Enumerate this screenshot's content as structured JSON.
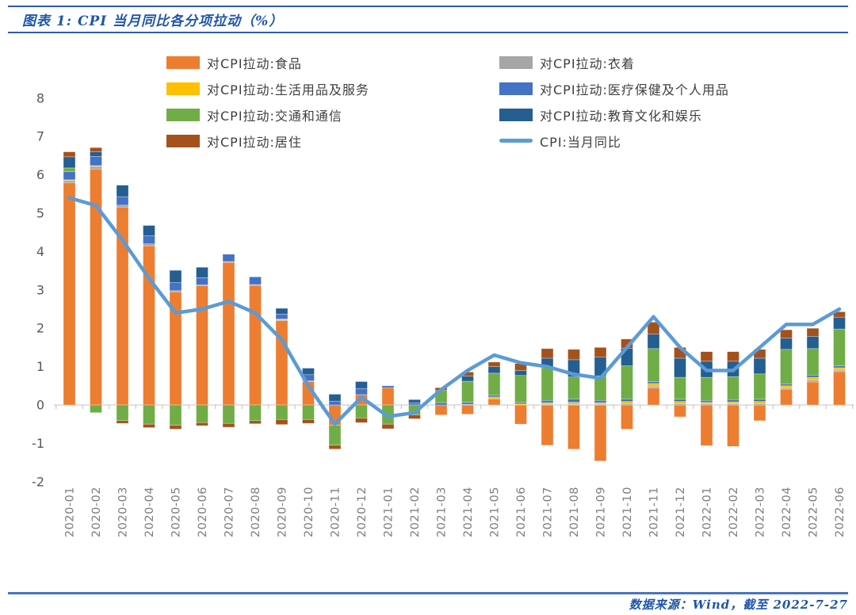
{
  "title": {
    "text": "图表 1: CPI 当月同比各分项拉动（%）"
  },
  "footer": {
    "source": "数据来源：Wind，截至 2022-7-27"
  },
  "chart_data": {
    "type": "bar",
    "subtype": "stacked-bar-with-line",
    "title": "图表 1: CPI 当月同比各分项拉动（%）",
    "xlabel": "",
    "ylabel": "",
    "ylim": [
      -2,
      8
    ],
    "yticks": [
      8,
      7,
      6,
      5,
      4,
      3,
      2,
      1,
      0,
      -1,
      -2
    ],
    "grid": false,
    "legend_position": "top",
    "categories": [
      "2020-01",
      "2020-02",
      "2020-03",
      "2020-04",
      "2020-05",
      "2020-06",
      "2020-07",
      "2020-08",
      "2020-09",
      "2020-10",
      "2020-11",
      "2020-12",
      "2021-01",
      "2021-02",
      "2021-03",
      "2021-04",
      "2021-05",
      "2021-06",
      "2021-07",
      "2021-08",
      "2021-09",
      "2021-10",
      "2021-11",
      "2021-12",
      "2022-01",
      "2022-02",
      "2022-03",
      "2022-04",
      "2022-05",
      "2022-06"
    ],
    "series": [
      {
        "name": "对CPI拉动:食品",
        "color": "#ED7D31",
        "values": [
          5.79,
          6.15,
          5.16,
          4.15,
          2.95,
          3.11,
          3.72,
          3.12,
          2.2,
          0.61,
          -0.53,
          0.27,
          0.45,
          0.0,
          -0.26,
          -0.24,
          0.16,
          -0.5,
          -1.05,
          -1.15,
          -1.46,
          -0.63,
          0.44,
          -0.31,
          -1.06,
          -1.08,
          -0.41,
          0.41,
          0.6,
          0.87
        ]
      },
      {
        "name": "对CPI拉动:衣着",
        "color": "#A6A6A6",
        "values": [
          0.06,
          0.07,
          0.05,
          0.05,
          0.03,
          0.02,
          0.02,
          0.02,
          0.02,
          0.02,
          0.0,
          0.0,
          0.0,
          0.0,
          0.0,
          0.02,
          0.0,
          0.0,
          0.02,
          0.02,
          0.02,
          0.04,
          0.05,
          0.04,
          0.03,
          0.03,
          0.04,
          0.03,
          0.05,
          0.04
        ]
      },
      {
        "name": "对CPI拉动:生活用品及服务",
        "color": "#FFC000",
        "values": [
          0.02,
          0.02,
          0.0,
          0.0,
          0.0,
          0.0,
          0.0,
          0.0,
          0.02,
          0.0,
          0.0,
          0.0,
          0.0,
          0.0,
          0.0,
          0.0,
          0.05,
          0.03,
          0.04,
          0.05,
          0.04,
          0.05,
          0.07,
          0.05,
          0.04,
          0.05,
          0.05,
          0.06,
          0.07,
          0.06
        ]
      },
      {
        "name": "对CPI拉动:医疗保健及个人用品",
        "color": "#4472C4",
        "values": [
          0.21,
          0.24,
          0.22,
          0.21,
          0.21,
          0.19,
          0.19,
          0.2,
          0.13,
          0.16,
          0.1,
          0.16,
          0.05,
          0.06,
          0.06,
          0.05,
          0.05,
          0.04,
          0.06,
          0.09,
          0.06,
          0.07,
          0.05,
          0.06,
          0.05,
          0.06,
          0.06,
          0.05,
          0.06,
          0.05
        ]
      },
      {
        "name": "对CPI拉动:交通和通信",
        "color": "#70AD47",
        "values": [
          0.1,
          -0.2,
          -0.41,
          -0.5,
          -0.53,
          -0.46,
          -0.48,
          -0.41,
          -0.38,
          -0.38,
          -0.52,
          -0.34,
          -0.5,
          -0.26,
          0.32,
          0.55,
          0.57,
          0.7,
          0.85,
          0.57,
          0.64,
          0.86,
          0.86,
          0.57,
          0.6,
          0.6,
          0.66,
          0.9,
          0.69,
          0.96
        ]
      },
      {
        "name": "对CPI拉动:教育文化和娱乐",
        "color": "#255E91",
        "values": [
          0.29,
          0.12,
          0.3,
          0.27,
          0.32,
          0.27,
          0.0,
          0.0,
          0.15,
          0.17,
          0.18,
          0.18,
          0.0,
          0.08,
          0.0,
          0.13,
          0.17,
          0.13,
          0.25,
          0.45,
          0.49,
          0.46,
          0.38,
          0.5,
          0.42,
          0.4,
          0.41,
          0.29,
          0.32,
          0.31
        ]
      },
      {
        "name": "对CPI拉动:居住",
        "color": "#A5511C",
        "values": [
          0.13,
          0.11,
          -0.07,
          -0.09,
          -0.1,
          -0.08,
          -0.1,
          -0.08,
          -0.13,
          -0.1,
          -0.1,
          -0.12,
          -0.12,
          -0.1,
          0.07,
          0.11,
          0.12,
          0.18,
          0.25,
          0.27,
          0.25,
          0.24,
          0.31,
          0.28,
          0.25,
          0.25,
          0.23,
          0.22,
          0.21,
          0.14
        ]
      }
    ],
    "line": {
      "name": "CPI:当月同比",
      "color": "#5B9BD5",
      "values": [
        5.4,
        5.2,
        4.3,
        3.3,
        2.4,
        2.5,
        2.7,
        2.4,
        1.7,
        0.5,
        -0.5,
        0.2,
        -0.3,
        -0.2,
        0.4,
        0.9,
        1.3,
        1.1,
        1.0,
        0.8,
        0.7,
        1.5,
        2.3,
        1.5,
        0.9,
        0.9,
        1.5,
        2.1,
        2.1,
        2.5
      ]
    }
  }
}
